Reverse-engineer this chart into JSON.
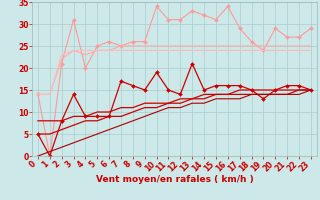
{
  "x": [
    0,
    1,
    2,
    3,
    4,
    5,
    6,
    7,
    8,
    9,
    10,
    11,
    12,
    13,
    14,
    15,
    16,
    17,
    18,
    19,
    20,
    21,
    22,
    23
  ],
  "series": [
    {
      "name": "rafales_light_marker",
      "color": "#ff9999",
      "linewidth": 0.8,
      "marker": "D",
      "markersize": 2.0,
      "y": [
        14,
        0,
        21,
        31,
        20,
        25,
        26,
        25,
        26,
        26,
        34,
        31,
        31,
        33,
        32,
        31,
        34,
        29,
        26,
        24,
        29,
        27,
        27,
        29
      ]
    },
    {
      "name": "upper_smooth1",
      "color": "#ffaaaa",
      "linewidth": 0.8,
      "marker": null,
      "y": [
        14,
        14,
        22,
        24,
        23,
        24,
        24,
        25,
        25,
        25,
        25,
        25,
        25,
        25,
        25,
        25,
        25,
        25,
        25,
        25,
        25,
        25,
        25,
        25
      ]
    },
    {
      "name": "upper_smooth2",
      "color": "#ffbbbb",
      "linewidth": 0.8,
      "marker": null,
      "y": [
        14,
        14,
        23,
        24,
        24,
        24,
        24,
        24,
        24,
        24,
        24,
        24,
        24,
        24,
        24,
        24,
        24,
        24,
        24,
        24,
        24,
        24,
        24,
        24
      ]
    },
    {
      "name": "vent_dark_marker",
      "color": "#cc0000",
      "linewidth": 0.9,
      "marker": "D",
      "markersize": 2.0,
      "y": [
        5,
        0,
        8,
        14,
        9,
        9,
        9,
        17,
        16,
        15,
        19,
        15,
        14,
        21,
        15,
        16,
        16,
        16,
        15,
        13,
        15,
        16,
        16,
        15
      ]
    },
    {
      "name": "regression_upper",
      "color": "#cc0000",
      "linewidth": 0.9,
      "marker": null,
      "y": [
        8,
        8,
        8,
        9,
        9,
        10,
        10,
        11,
        11,
        12,
        12,
        12,
        13,
        13,
        14,
        14,
        14,
        15,
        15,
        15,
        15,
        15,
        15,
        15
      ]
    },
    {
      "name": "regression_mid",
      "color": "#cc0000",
      "linewidth": 0.9,
      "marker": null,
      "y": [
        5,
        5,
        6,
        7,
        8,
        8,
        9,
        9,
        10,
        11,
        11,
        12,
        12,
        13,
        13,
        14,
        14,
        14,
        14,
        14,
        14,
        14,
        15,
        15
      ]
    },
    {
      "name": "regression_lower",
      "color": "#aa0000",
      "linewidth": 0.8,
      "marker": null,
      "y": [
        0,
        1,
        2,
        3,
        4,
        5,
        6,
        7,
        8,
        9,
        10,
        11,
        11,
        12,
        12,
        13,
        13,
        13,
        14,
        14,
        14,
        14,
        14,
        15
      ]
    }
  ],
  "xlabel": "Vent moyen/en rafales ( km/h )",
  "xlim": [
    -0.5,
    23.5
  ],
  "ylim": [
    0,
    35
  ],
  "yticks": [
    0,
    5,
    10,
    15,
    20,
    25,
    30,
    35
  ],
  "xticks": [
    0,
    1,
    2,
    3,
    4,
    5,
    6,
    7,
    8,
    9,
    10,
    11,
    12,
    13,
    14,
    15,
    16,
    17,
    18,
    19,
    20,
    21,
    22,
    23
  ],
  "background_color": "#cce8e8",
  "grid_color": "#aacece",
  "tick_color": "#cc0000",
  "label_color": "#cc0000"
}
